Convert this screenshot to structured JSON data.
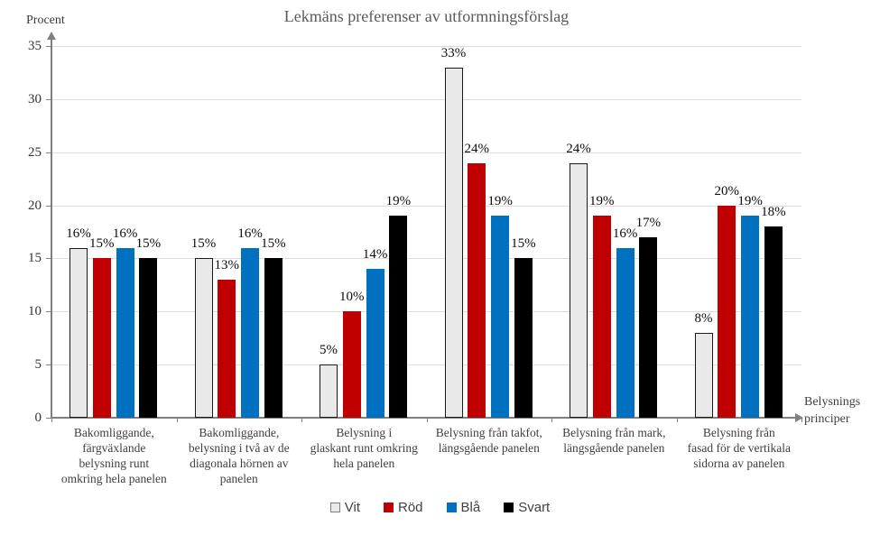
{
  "title": "Lekmäns preferenser av utformningsförslag",
  "y_axis_title": "Procent",
  "x_axis_title_lines": [
    "Belysnings",
    "principer"
  ],
  "legend_labels": [
    "Vit",
    "Röd",
    "Blå",
    "Svart"
  ],
  "chart_data": {
    "type": "bar",
    "title": "Lekmäns preferenser av utformningsförslag",
    "ylabel": "Procent",
    "xlabel": "Belysnings principer",
    "ylim": [
      0,
      35
    ],
    "yticks": [
      0,
      5,
      10,
      15,
      20,
      25,
      30,
      35
    ],
    "grid": true,
    "legend_position": "bottom",
    "data_label_suffix": "%",
    "grid_color": "#DCDCDC",
    "axis_color": "#7F7F7F",
    "categories": [
      "Bakomliggande, färgväxlande belysning runt omkring hela panelen",
      "Bakomliggande, belysning i två av de diagonala hörnen av panelen",
      "Belysning i glaskant runt omkring hela panelen",
      "Belysning från takfot, längsgående panelen",
      "Belysning från mark, längsgående panelen",
      "Belysning från fasad för de vertikala sidorna av panelen"
    ],
    "category_lines": [
      [
        "Bakomliggande,",
        "färgväxlande",
        "belysning runt",
        "omkring hela panelen"
      ],
      [
        "Bakomliggande,",
        "belysning i två av de",
        "diagonala hörnen av",
        "panelen"
      ],
      [
        "Belysning i",
        "glaskant runt omkring",
        "hela panelen"
      ],
      [
        "Belysning från takfot,",
        "längsgående panelen"
      ],
      [
        "Belysning från mark,",
        "längsgående panelen"
      ],
      [
        "Belysning från",
        "fasad för de vertikala",
        "sidorna av panelen"
      ]
    ],
    "series": [
      {
        "name": "Vit",
        "key": "vit",
        "color": "#E9E9E9",
        "border_color": "#1A1A1A",
        "values": [
          16,
          15,
          5,
          33,
          24,
          8
        ]
      },
      {
        "name": "Röd",
        "key": "rod",
        "color": "#C00000",
        "values": [
          15,
          13,
          10,
          24,
          19,
          20
        ]
      },
      {
        "name": "Blå",
        "key": "bla",
        "color": "#0070C0",
        "values": [
          16,
          16,
          14,
          19,
          16,
          19
        ]
      },
      {
        "name": "Svart",
        "key": "svart",
        "color": "#000000",
        "values": [
          15,
          15,
          19,
          15,
          17,
          18
        ]
      }
    ]
  }
}
